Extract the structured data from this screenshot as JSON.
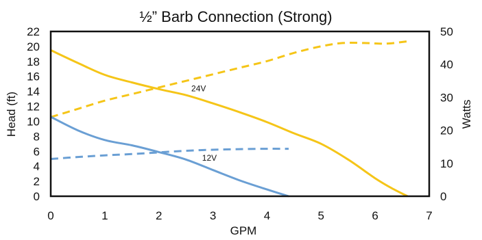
{
  "chart_data": {
    "type": "line",
    "title": "½” Barb Connection (Strong)",
    "xlabel": "GPM",
    "ylabel": "Head (ft)",
    "y2label": "Watts",
    "xlim": [
      0,
      7
    ],
    "ylim": [
      0,
      22
    ],
    "y2lim": [
      0,
      50
    ],
    "xticks": [
      "0",
      "1",
      "2",
      "3",
      "4",
      "5",
      "6",
      "7"
    ],
    "yticks": [
      "0",
      "2",
      "4",
      "6",
      "8",
      "10",
      "12",
      "14",
      "16",
      "18",
      "20",
      "22"
    ],
    "y2ticks": [
      "0",
      "10",
      "20",
      "30",
      "40",
      "50"
    ],
    "grid": false,
    "legend": "none",
    "annotations": [
      {
        "text": "24V",
        "x": 2.6,
        "y": 14.4
      },
      {
        "text": "12V",
        "x": 2.8,
        "y": 5.1
      }
    ],
    "series": [
      {
        "axis": "left",
        "style": "solid",
        "color": "#F5C518",
        "x": [
          0,
          0.5,
          1.0,
          1.5,
          2.0,
          2.5,
          3.0,
          3.5,
          4.0,
          4.5,
          5.0,
          5.5,
          6.0,
          6.3,
          6.6
        ],
        "y": [
          19.5,
          17.8,
          16.2,
          15.2,
          14.3,
          13.5,
          12.4,
          11.2,
          9.9,
          8.4,
          7.0,
          4.9,
          2.4,
          1.1,
          0
        ]
      },
      {
        "axis": "right",
        "style": "dashed",
        "color": "#F5C518",
        "x": [
          0,
          0.5,
          1.0,
          1.5,
          2.0,
          2.5,
          3.0,
          3.5,
          4.0,
          4.5,
          5.0,
          5.4,
          5.8,
          6.2,
          6.6
        ],
        "y": [
          24,
          26.5,
          29,
          31,
          33,
          35,
          37,
          39,
          41,
          43.5,
          45.5,
          46.5,
          46.5,
          46.3,
          47
        ]
      },
      {
        "axis": "left",
        "style": "solid",
        "color": "#6A9FD4",
        "x": [
          0,
          0.5,
          1.0,
          1.5,
          2.0,
          2.5,
          3.0,
          3.5,
          4.0,
          4.4
        ],
        "y": [
          10.6,
          8.8,
          7.5,
          6.8,
          5.9,
          4.9,
          3.5,
          2.1,
          0.9,
          0
        ]
      },
      {
        "axis": "right",
        "style": "dashed",
        "color": "#6A9FD4",
        "x": [
          0,
          0.5,
          1.0,
          1.5,
          2.0,
          2.5,
          3.0,
          3.5,
          4.0,
          4.4
        ],
        "y": [
          11.3,
          11.9,
          12.4,
          12.8,
          13.3,
          13.8,
          14.1,
          14.3,
          14.4,
          14.4
        ]
      }
    ]
  }
}
